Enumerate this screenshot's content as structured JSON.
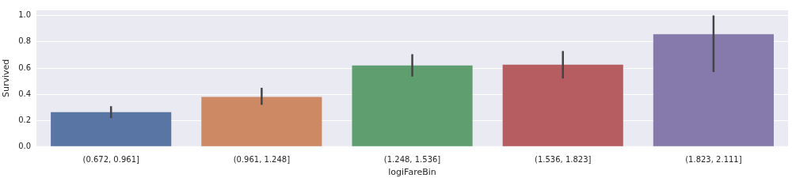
{
  "chart_data": {
    "type": "bar",
    "x_label": "logiFareBin",
    "y_label": "Survived",
    "categories": [
      "(0.672, 0.961]",
      "(0.961, 1.248]",
      "(1.248, 1.536]",
      "(1.536, 1.823]",
      "(1.823, 2.111]"
    ],
    "values": [
      0.265,
      0.38,
      0.62,
      0.625,
      0.857
    ],
    "errors": [
      [
        0.22,
        0.31
      ],
      [
        0.32,
        0.45
      ],
      [
        0.535,
        0.705
      ],
      [
        0.52,
        0.73
      ],
      [
        0.57,
        1.0
      ]
    ],
    "colors": [
      "#5975a4",
      "#cc8963",
      "#5f9e6e",
      "#b55d60",
      "#857aab"
    ],
    "ylim": [
      0,
      1.045
    ],
    "yticks": [
      {
        "value": 0,
        "label": "0.0"
      },
      0.2,
      0.4,
      0.6,
      0.8,
      {
        "value": 1,
        "label": "1.0"
      }
    ],
    "grid": true
  }
}
